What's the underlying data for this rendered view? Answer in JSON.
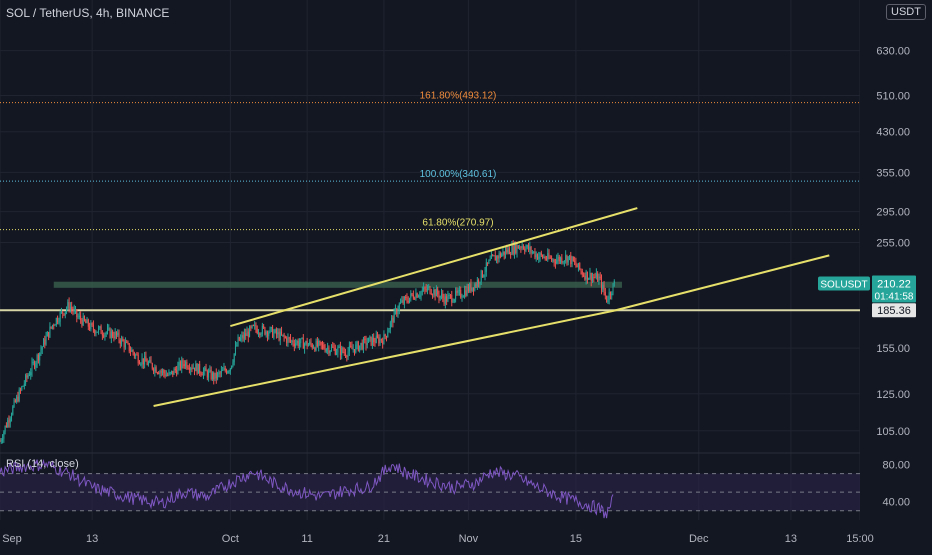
{
  "header": {
    "symbol_title": "SOL / TetherUS, 4h, BINANCE",
    "currency_badge": "USDT"
  },
  "colors": {
    "background": "#131722",
    "grid": "#1f2430",
    "axis_text": "#b2b5be",
    "candle_up": "#26a69a",
    "candle_down": "#ef5350",
    "trendline": "#e6e06a",
    "zone": "#3d6b52",
    "fib_1618": "#f08c3c",
    "fib_1000": "#5fc2e0",
    "fib_0618": "#e6e06a",
    "support_line": "#d8d6a6",
    "rsi_line": "#7e57c2",
    "rsi_band": "#2a2348",
    "price_tag": "#26a69a"
  },
  "chart_data": [
    {
      "type": "candlestick",
      "title": "SOL / TetherUS, 4h, BINANCE",
      "y_scale": "log",
      "ylim": [
        95,
        800
      ],
      "y_ticks": [
        105.0,
        125.0,
        155.0,
        185.36,
        255.0,
        295.0,
        355.0,
        430.0,
        510.0,
        630.0
      ],
      "y_tick_labels": [
        "105.00",
        "125.00",
        "155.00",
        "185.36",
        "255.00",
        "295.00",
        "355.00",
        "430.00",
        "510.00",
        "630.00"
      ],
      "x_ticks": [
        "Sep",
        "13",
        "Oct",
        "11",
        "21",
        "Nov",
        "15",
        "Dec",
        "13",
        "15:00"
      ],
      "x_tick_dates": [
        "2021-09-01",
        "2021-09-13",
        "2021-10-01",
        "2021-10-11",
        "2021-10-21",
        "2021-11-01",
        "2021-11-15",
        "2021-12-01",
        "2021-12-13",
        "2021-12-22"
      ],
      "x_range": [
        "2021-09-01",
        "2021-12-22"
      ],
      "price_path": [
        [
          "2021-09-01",
          100
        ],
        [
          "2021-09-03",
          120
        ],
        [
          "2021-09-06",
          150
        ],
        [
          "2021-09-08",
          175
        ],
        [
          "2021-09-10",
          190
        ],
        [
          "2021-09-11",
          180
        ],
        [
          "2021-09-13",
          170
        ],
        [
          "2021-09-16",
          165
        ],
        [
          "2021-09-19",
          148
        ],
        [
          "2021-09-21",
          142
        ],
        [
          "2021-09-23",
          136
        ],
        [
          "2021-09-25",
          145
        ],
        [
          "2021-09-27",
          140
        ],
        [
          "2021-09-29",
          135
        ],
        [
          "2021-10-01",
          142
        ],
        [
          "2021-10-02",
          160
        ],
        [
          "2021-10-04",
          170
        ],
        [
          "2021-10-06",
          168
        ],
        [
          "2021-10-09",
          160
        ],
        [
          "2021-10-11",
          158
        ],
        [
          "2021-10-14",
          155
        ],
        [
          "2021-10-16",
          152
        ],
        [
          "2021-10-19",
          160
        ],
        [
          "2021-10-21",
          162
        ],
        [
          "2021-10-23",
          190
        ],
        [
          "2021-10-25",
          200
        ],
        [
          "2021-10-27",
          205
        ],
        [
          "2021-10-29",
          195
        ],
        [
          "2021-10-31",
          200
        ],
        [
          "2021-11-02",
          210
        ],
        [
          "2021-11-04",
          235
        ],
        [
          "2021-11-06",
          245
        ],
        [
          "2021-11-08",
          252
        ],
        [
          "2021-11-10",
          240
        ],
        [
          "2021-11-12",
          235
        ],
        [
          "2021-11-14",
          238
        ],
        [
          "2021-11-16",
          220
        ],
        [
          "2021-11-18",
          215
        ],
        [
          "2021-11-19",
          195
        ],
        [
          "2021-11-20",
          210
        ]
      ],
      "current_price": {
        "symbol": "SOLUSDT",
        "price": "210.22",
        "countdown": "01:41:58"
      },
      "horizontal_levels": [
        {
          "label": "161.80%(493.12)",
          "value": 493.12,
          "ratio": "161.80%"
        },
        {
          "label": "100.00%(340.61)",
          "value": 340.61,
          "ratio": "100.00%"
        },
        {
          "label": "61.80%(270.97)",
          "value": 270.97,
          "ratio": "61.80%"
        }
      ],
      "support_level": {
        "value": 185.36,
        "label": "185.36"
      },
      "resistance_zone": {
        "low": 206,
        "high": 212,
        "from": "2021-09-08",
        "to": "2021-11-21"
      },
      "trendlines": [
        {
          "name": "upper-channel",
          "from": [
            "2021-10-01",
            172
          ],
          "to": [
            "2021-11-23",
            300
          ]
        },
        {
          "name": "lower-channel",
          "from": [
            "2021-09-21",
            118
          ],
          "to": [
            "2021-11-20",
            185
          ]
        },
        {
          "name": "extended-support",
          "from": [
            "2021-11-20",
            185
          ],
          "to": [
            "2021-12-18",
            240
          ]
        }
      ],
      "grid": true
    },
    {
      "type": "line",
      "title": "RSI (14, close)",
      "ylim": [
        20,
        90
      ],
      "y_ticks": [
        80,
        40
      ],
      "y_tick_labels": [
        "80.00",
        "40.00"
      ],
      "bands": [
        70,
        30
      ],
      "series": [
        {
          "values": [
            [
              "2021-09-01",
              72
            ],
            [
              "2021-09-04",
              78
            ],
            [
              "2021-09-07",
              80
            ],
            [
              "2021-09-10",
              70
            ],
            [
              "2021-09-13",
              55
            ],
            [
              "2021-09-16",
              48
            ],
            [
              "2021-09-19",
              42
            ],
            [
              "2021-09-22",
              38
            ],
            [
              "2021-09-25",
              50
            ],
            [
              "2021-09-28",
              45
            ],
            [
              "2021-10-01",
              60
            ],
            [
              "2021-10-04",
              72
            ],
            [
              "2021-10-07",
              58
            ],
            [
              "2021-10-10",
              50
            ],
            [
              "2021-10-13",
              45
            ],
            [
              "2021-10-16",
              52
            ],
            [
              "2021-10-19",
              55
            ],
            [
              "2021-10-22",
              80
            ],
            [
              "2021-10-24",
              70
            ],
            [
              "2021-10-27",
              62
            ],
            [
              "2021-10-30",
              55
            ],
            [
              "2021-11-02",
              60
            ],
            [
              "2021-11-04",
              72
            ],
            [
              "2021-11-07",
              68
            ],
            [
              "2021-11-10",
              55
            ],
            [
              "2021-11-13",
              45
            ],
            [
              "2021-11-16",
              38
            ],
            [
              "2021-11-18",
              32
            ],
            [
              "2021-11-19",
              26
            ],
            [
              "2021-11-20",
              44
            ]
          ]
        }
      ]
    }
  ]
}
